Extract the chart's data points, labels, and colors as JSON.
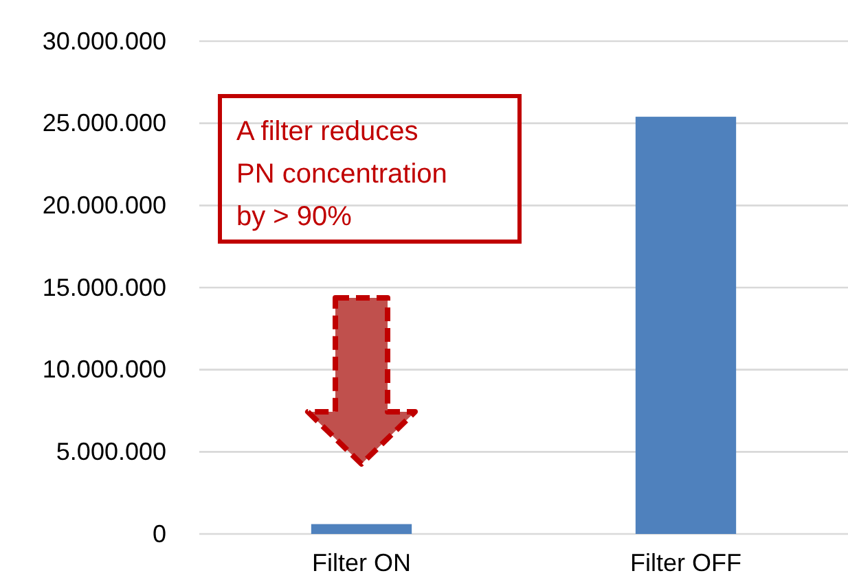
{
  "chart_data": {
    "type": "bar",
    "categories": [
      "Filter ON",
      "Filter OFF"
    ],
    "values": [
      600000,
      25400000
    ],
    "color": "#4f81bd",
    "ylim": [
      0,
      30000000
    ],
    "yticks": [
      {
        "value": 0,
        "label": "0"
      },
      {
        "value": 5000000,
        "label": "5.000.000"
      },
      {
        "value": 10000000,
        "label": "10.000.000"
      },
      {
        "value": 15000000,
        "label": "15.000.000"
      },
      {
        "value": 20000000,
        "label": "20.000.000"
      },
      {
        "value": 25000000,
        "label": "25.000.000"
      },
      {
        "value": 30000000,
        "label": "30.000.000"
      }
    ],
    "grid": "y",
    "annotations": [
      "A filter reduces\nPN concentration\nby > 90%"
    ]
  }
}
